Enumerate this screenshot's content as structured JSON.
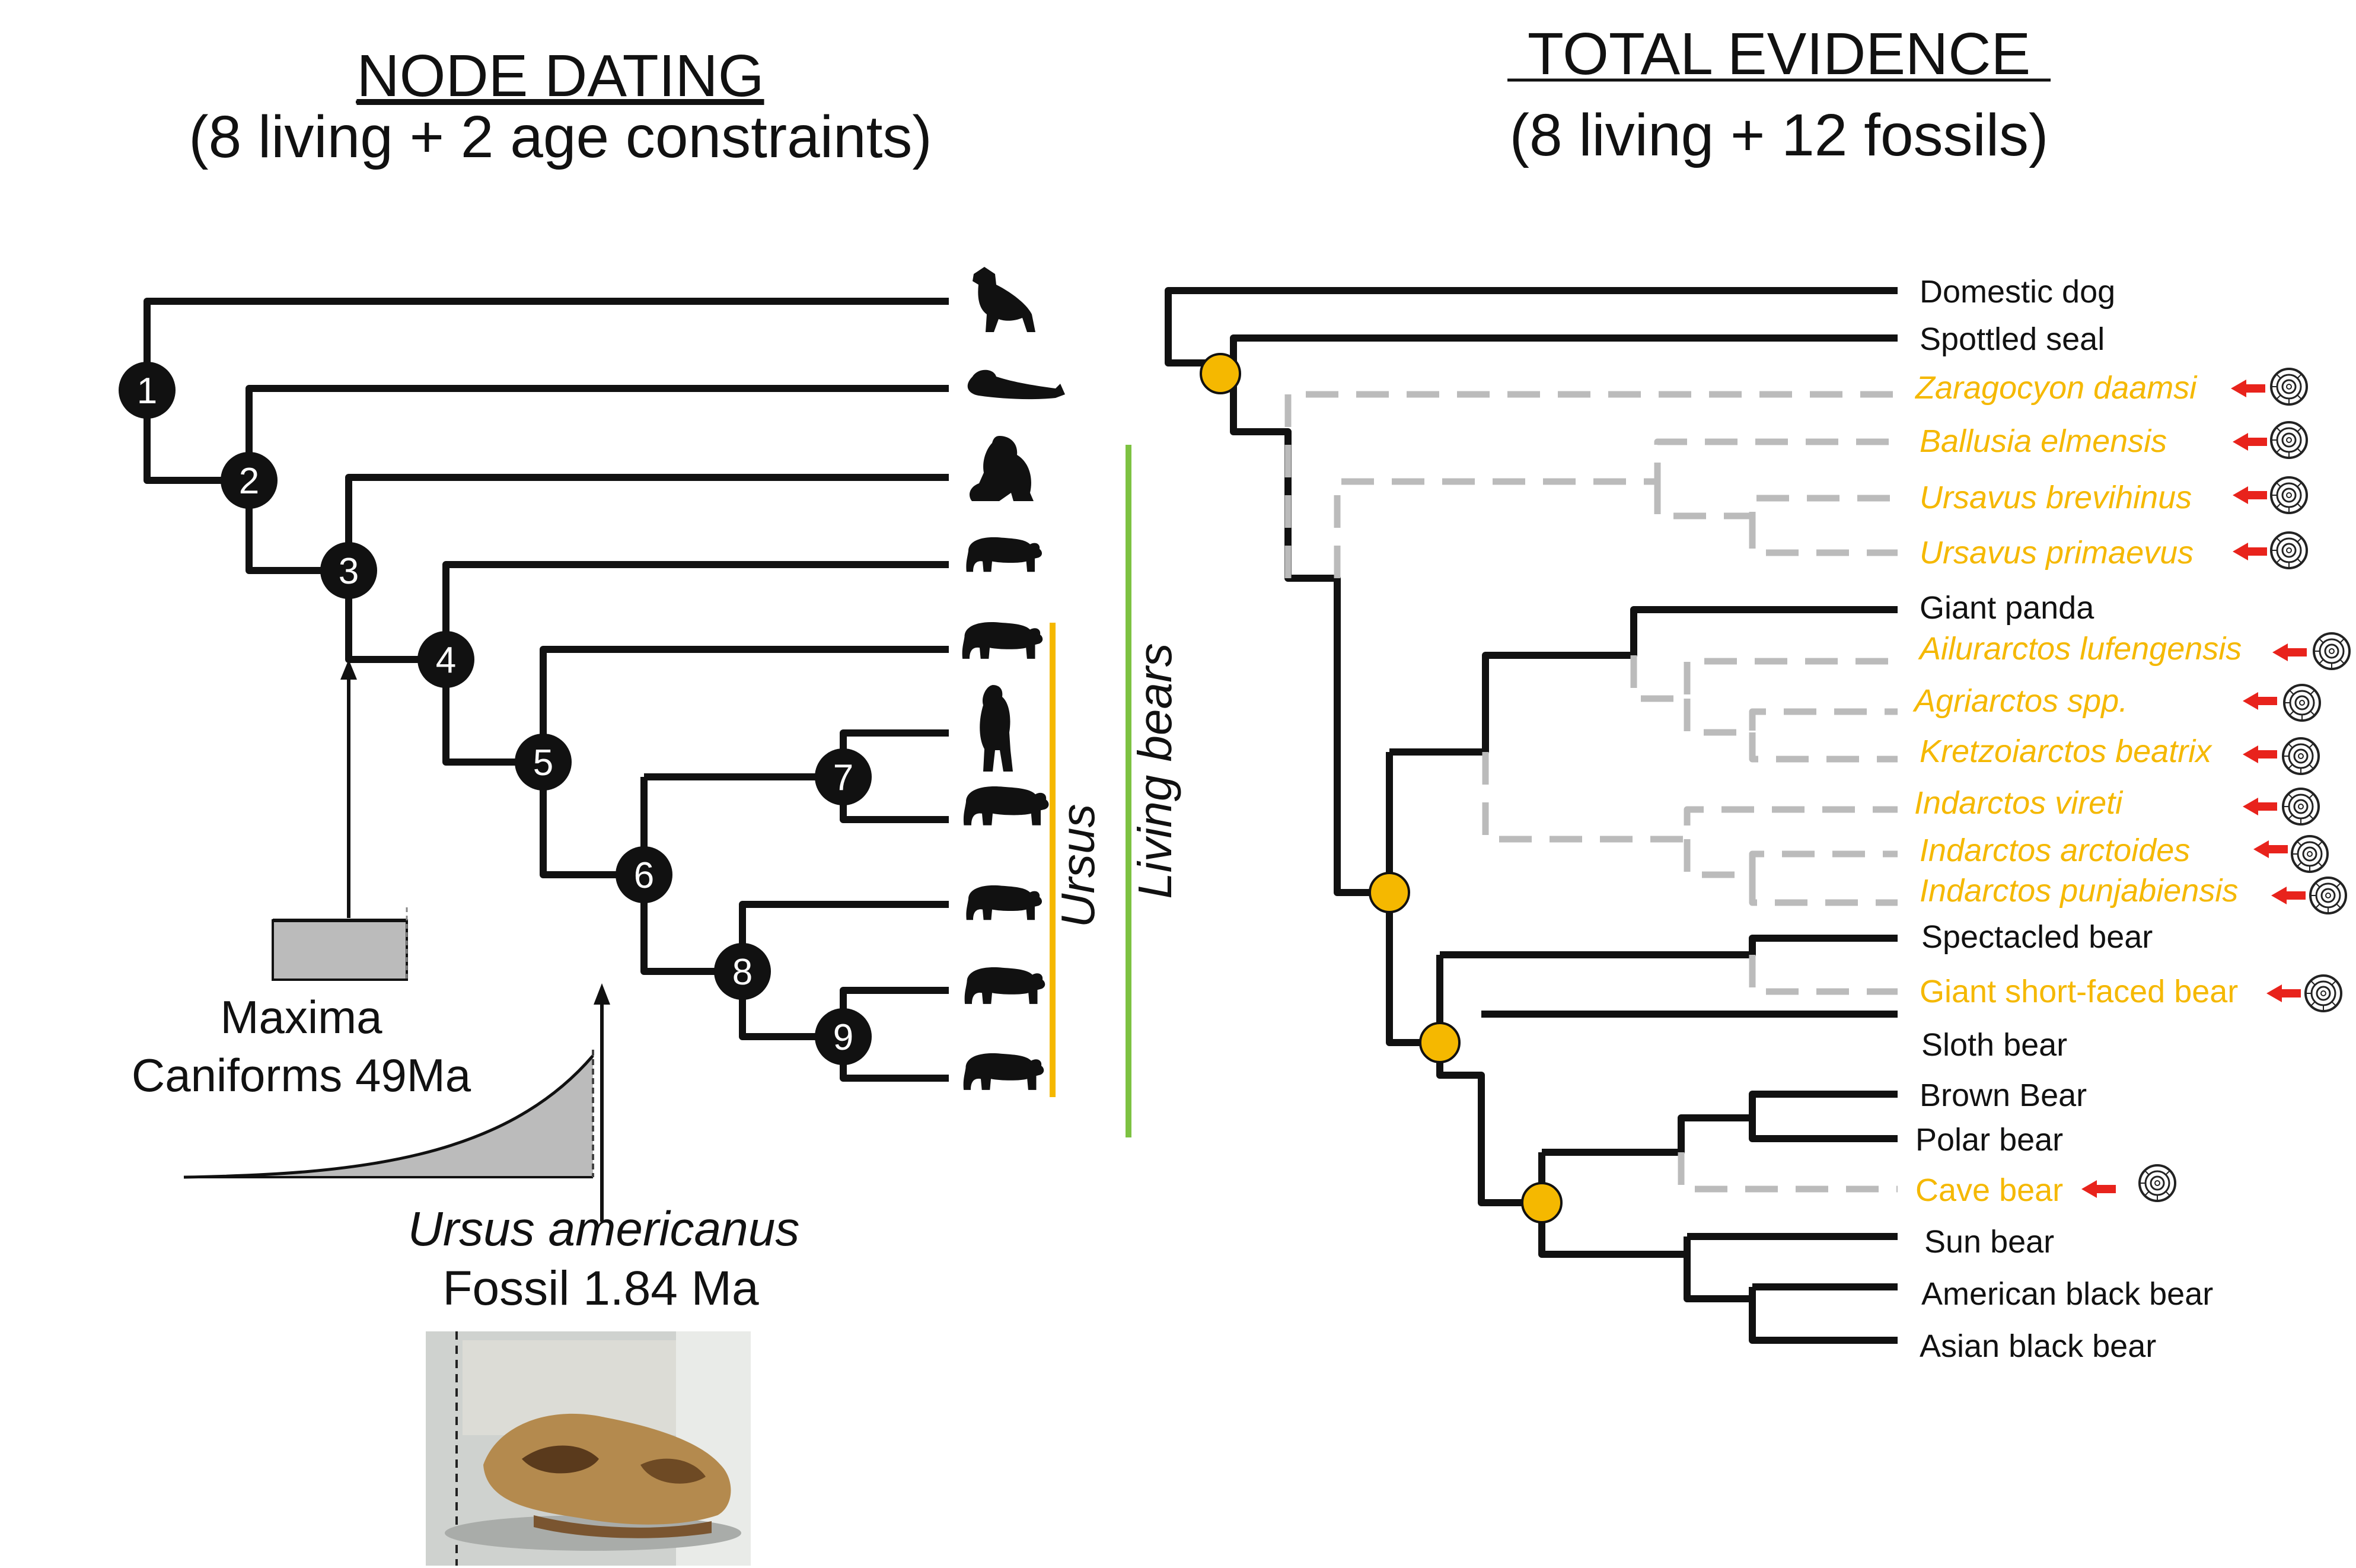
{
  "node_dating": {
    "title": "NODE DATING",
    "subtitle": "(8 living + 2 age constraints)",
    "nodes": [
      "1",
      "2",
      "3",
      "4",
      "5",
      "6",
      "7",
      "8",
      "9"
    ],
    "maxima_line1": "Maxima",
    "maxima_line2": "Caniforms 49Ma",
    "fossil_name": "Ursus americanus",
    "fossil_age": "Fossil 1.84 Ma",
    "ursus_label": "Ursus",
    "living_label": "Living bears",
    "ursus_color": "#f5b800",
    "living_color": "#7dc242",
    "silhouettes": [
      "wolf-icon",
      "seal-icon",
      "panda-icon",
      "spectacled-bear-icon",
      "sloth-bear-icon",
      "standing-bear-icon",
      "polar-bear-icon",
      "sun-bear-icon",
      "black-bear-icon",
      "asian-black-bear-icon"
    ]
  },
  "total_evidence": {
    "title": "TOTAL EVIDENCE",
    "subtitle": "(8 living + 12 fossils)",
    "taxa": [
      {
        "name": "Domestic dog",
        "fossil": false
      },
      {
        "name": "Spottled seal",
        "fossil": false
      },
      {
        "name": "Zaragocyon daamsi",
        "fossil": true
      },
      {
        "name": "Ballusia elmensis",
        "fossil": true
      },
      {
        "name": "Ursavus brevihinus",
        "fossil": true
      },
      {
        "name": "Ursavus primaevus",
        "fossil": true
      },
      {
        "name": "Giant panda",
        "fossil": false
      },
      {
        "name": "Ailurarctos lufengensis",
        "fossil": true
      },
      {
        "name": "Agriarctos spp.",
        "fossil": true
      },
      {
        "name": "Kretzoiarctos beatrix",
        "fossil": true
      },
      {
        "name": "Indarctos vireti",
        "fossil": true
      },
      {
        "name": "Indarctos arctoides",
        "fossil": true
      },
      {
        "name": "Indarctos punjabiensis",
        "fossil": true
      },
      {
        "name": "Spectacled bear",
        "fossil": false
      },
      {
        "name": "Giant short-faced bear",
        "fossil": true
      },
      {
        "name": "Sloth bear",
        "fossil": false
      },
      {
        "name": "Brown Bear",
        "fossil": false
      },
      {
        "name": "Polar bear",
        "fossil": false
      },
      {
        "name": "Cave bear",
        "fossil": true
      },
      {
        "name": "Sun bear",
        "fossil": false
      },
      {
        "name": "American black bear",
        "fossil": false
      },
      {
        "name": "Asian black bear",
        "fossil": false
      }
    ],
    "fossil_color": "#f5b800",
    "arrow_color": "#e8231c",
    "calibration_node_color": "#f5b800",
    "fossil_branch_color": "#bbbbbb"
  }
}
